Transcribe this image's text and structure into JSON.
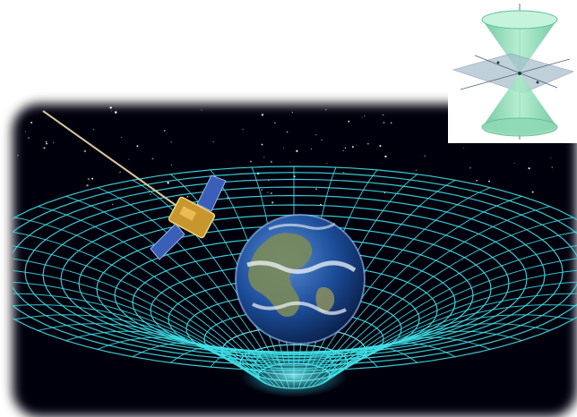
{
  "scene": {
    "subject": "gravity-well",
    "elements": [
      "earth",
      "satellite",
      "spacetime-grid",
      "starfield"
    ],
    "colors": {
      "space": "#050608",
      "grid": "#3fe0e8",
      "grid_glow": "#7ff4ff",
      "ocean": "#1d4f9c",
      "land": "#7a8a5a",
      "cloud": "#f2f5f8",
      "satellite_body": "#c8962e",
      "solar_panel": "#3a5fb8"
    }
  },
  "inset": {
    "subject": "light-cone",
    "label": "",
    "colors": {
      "cone": "#7fd7b0",
      "plane": "#9fb8c8"
    }
  }
}
